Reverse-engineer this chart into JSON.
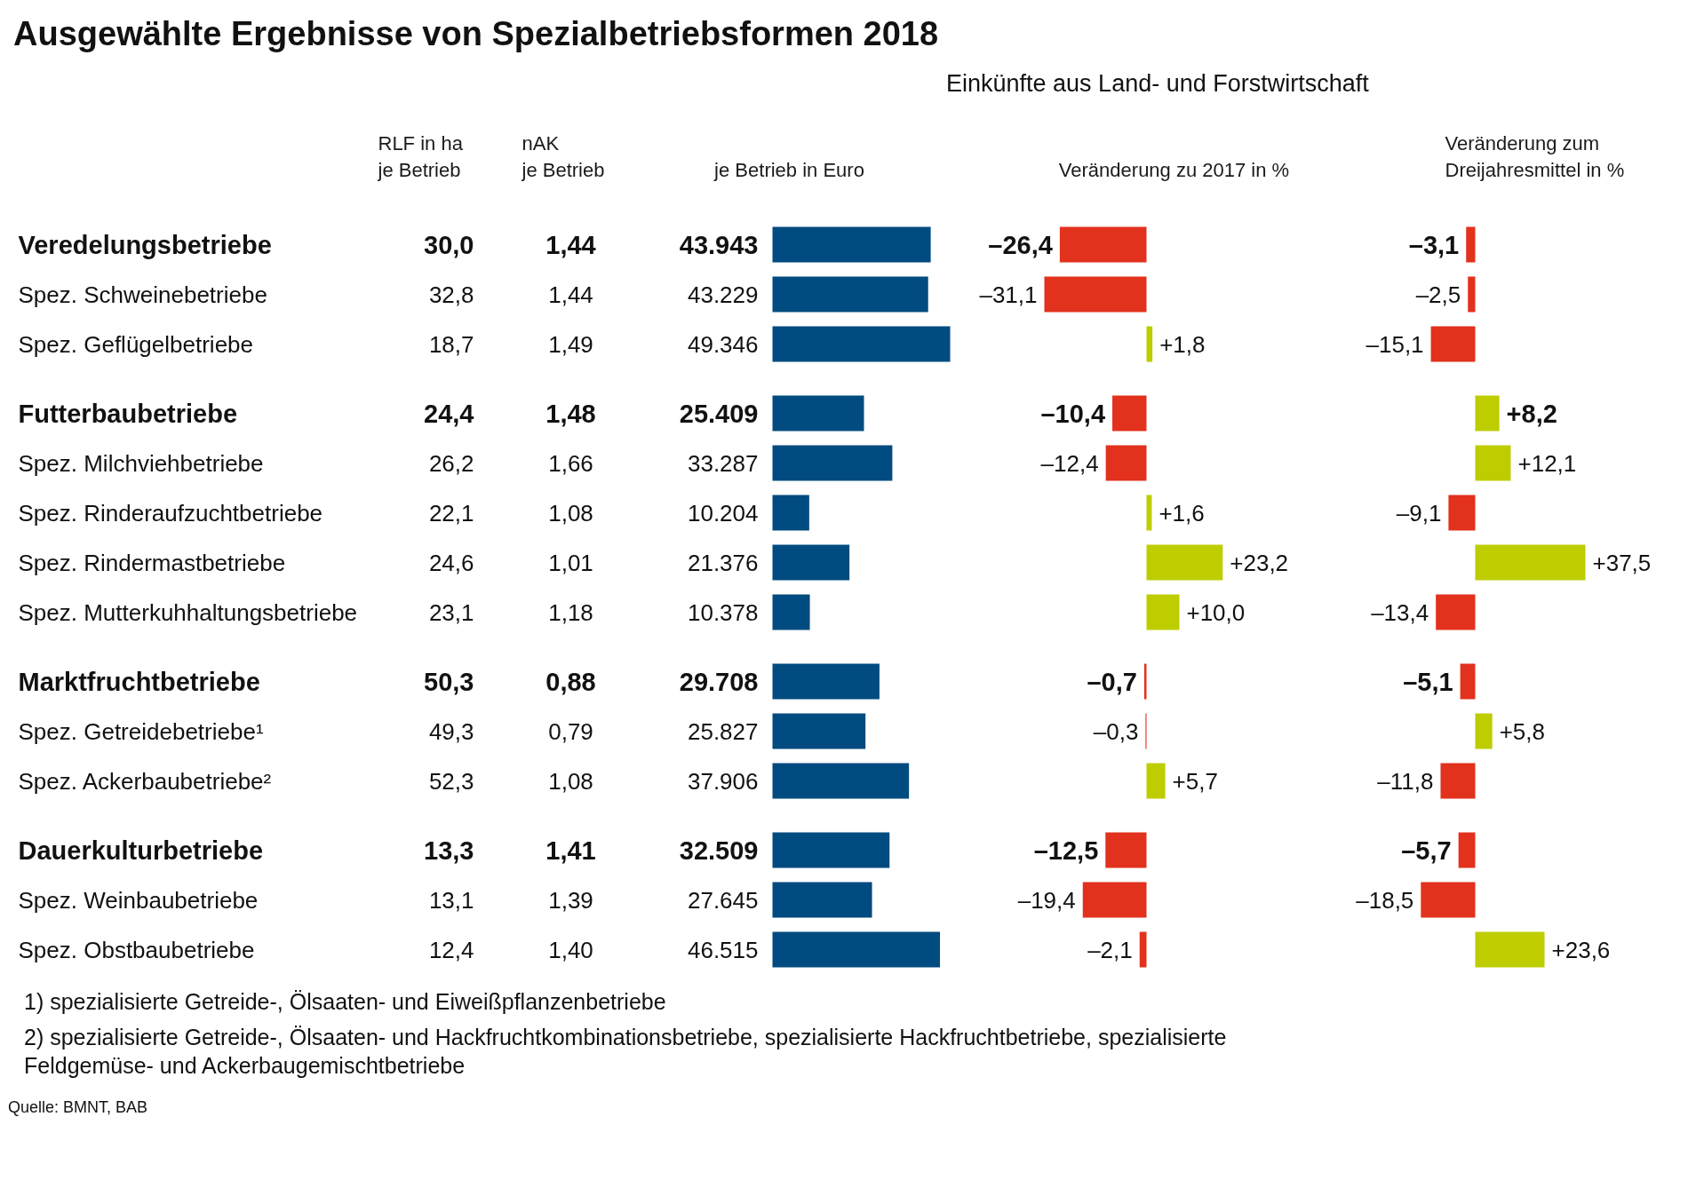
{
  "chart_data": [
    {
      "type": "other",
      "title": "Ausgewählte Ergebnisse von Spezialbetriebsformen 2018",
      "categories": [
        "Veredelungsbetriebe",
        "Spez. Schweinebetriebe",
        "Spez. Geflügelbetriebe",
        "Futterbaubetriebe",
        "Spez. Milchviehbetriebe",
        "Spez. Rinderaufzuchtbetriebe",
        "Spez. Rindermastbetriebe",
        "Spez. Mutterkuhhaltungsbetriebe",
        "Marktfruchtbetriebe",
        "Spez. Getreidebetriebe¹",
        "Spez. Ackerbaubetriebe²",
        "Dauerkulturbetriebe",
        "Spez. Weinbaubetriebe",
        "Spez. Obstbaubetriebe"
      ],
      "series": [
        {
          "name": "RLF in ha\nje Betrieb",
          "values": [
            30.0,
            32.8,
            18.7,
            24.4,
            26.2,
            22.1,
            24.6,
            23.1,
            50.3,
            49.3,
            52.3,
            13.3,
            13.1,
            12.4
          ],
          "value_labels": [
            "30,0",
            "32,8",
            "18,7",
            "24,4",
            "26,2",
            "22,1",
            "24,6",
            "23,1",
            "50,3",
            "49,3",
            "52,3",
            "13,3",
            "13,1",
            "12,4"
          ]
        },
        {
          "name": "nAK\nje Betrieb",
          "values": [
            1.44,
            1.44,
            1.49,
            1.48,
            1.66,
            1.08,
            1.01,
            1.18,
            0.88,
            0.79,
            1.08,
            1.41,
            1.39,
            1.4
          ],
          "value_labels": [
            "1,44",
            "1,44",
            "1,49",
            "1,48",
            "1,66",
            "1,08",
            "1,01",
            "1,18",
            "0,88",
            "0,79",
            "1,08",
            "1,41",
            "1,39",
            "1,40"
          ]
        }
      ],
      "annotations": [
        "1) spezialisierte Getreide-, Ölsaaten- und Eiweißpflanzenbetriebe",
        "2) spezialisierte Getreide-, Ölsaaten- und Hackfruchtkombinationsbetriebe, spezialisierte Hackfruchtbetriebe, spezialisierte Feldgemüse- und Ackerbaugemischtbetriebe",
        "Quelle: BMNT, BAB"
      ]
    },
    {
      "type": "bar",
      "orientation": "horizontal",
      "xlabel": "je Betrieb in Euro",
      "values": [
        43943,
        43229,
        49346,
        25409,
        33287,
        10204,
        21376,
        10378,
        29708,
        25827,
        37906,
        32509,
        27645,
        46515
      ],
      "value_labels": [
        "43.943",
        "43.229",
        "49.346",
        "25.409",
        "33.287",
        "10.204",
        "21.376",
        "10.378",
        "29.708",
        "25.827",
        "37.906",
        "32.509",
        "27.645",
        "46.515"
      ],
      "color": "#004b7f"
    },
    {
      "type": "bar",
      "orientation": "horizontal",
      "subtitle": "Einkünfte aus Land- und Forstwirtschaft",
      "xlabel": "Veränderung zu 2017 in %",
      "values": [
        -26.4,
        -31.1,
        1.8,
        -10.4,
        -12.4,
        1.6,
        23.2,
        10.0,
        -0.7,
        -0.3,
        5.7,
        -12.5,
        -19.4,
        -2.1
      ],
      "value_labels": [
        "–26,4",
        "–31,1",
        "+1,8",
        "–10,4",
        "–12,4",
        "+1,6",
        "+23,2",
        "+10,0",
        "–0,7",
        "–0,3",
        "+5,7",
        "–12,5",
        "–19,4",
        "–2,1"
      ],
      "colors": [
        "#e2311d",
        "#e2311d",
        "#bdcd00",
        "#e2311d",
        "#e2311d",
        "#bdcd00",
        "#bdcd00",
        "#bdcd00",
        "#e2311d",
        "#e2311d",
        "#bdcd00",
        "#e2311d",
        "#e2311d",
        "#e2311d"
      ]
    },
    {
      "type": "bar",
      "orientation": "horizontal",
      "xlabel": "Veränderung zum\nDreijahresmittel in %",
      "values": [
        -3.1,
        -2.5,
        -15.1,
        8.2,
        12.1,
        -9.1,
        37.5,
        -13.4,
        -5.1,
        5.8,
        -11.8,
        -5.7,
        -18.5,
        23.6
      ],
      "value_labels": [
        "–3,1",
        "–2,5",
        "–15,1",
        "+8,2",
        "+12,1",
        "–9,1",
        "+37,5",
        "–13,4",
        "–5,1",
        "+5,8",
        "–11,8",
        "–5,7",
        "–18,5",
        "+23,6"
      ],
      "colors": [
        "#e2311d",
        "#e2311d",
        "#e2311d",
        "#bdcd00",
        "#bdcd00",
        "#e2311d",
        "#bdcd00",
        "#e2311d",
        "#e2311d",
        "#bdcd00",
        "#e2311d",
        "#e2311d",
        "#e2311d",
        "#bdcd00"
      ]
    }
  ]
}
